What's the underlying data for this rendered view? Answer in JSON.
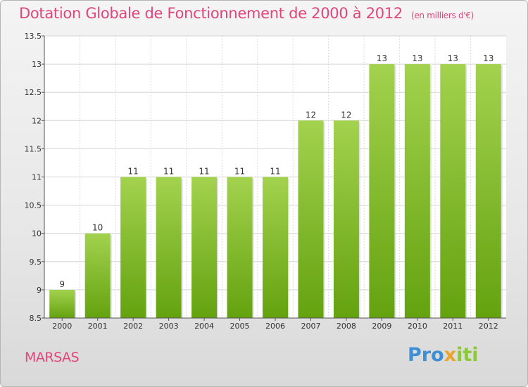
{
  "header": {
    "title": "Dotation Globale de Fonctionnement de 2000 à 2012",
    "subtitle": "(en milliers d'€)"
  },
  "footer": {
    "place": "MARSAS",
    "logo_letters": [
      {
        "char": "P",
        "color": "#3f8fd4"
      },
      {
        "char": "r",
        "color": "#3f8fd4"
      },
      {
        "char": "o",
        "color": "#3f8fd4"
      },
      {
        "char": "x",
        "color": "#e8a42c"
      },
      {
        "char": "i",
        "color": "#8bc83a"
      },
      {
        "char": "t",
        "color": "#8bc83a"
      },
      {
        "char": "i",
        "color": "#8bc83a"
      }
    ]
  },
  "chart_data": {
    "type": "bar",
    "categories": [
      "2000",
      "2001",
      "2002",
      "2003",
      "2004",
      "2005",
      "2006",
      "2007",
      "2008",
      "2009",
      "2010",
      "2011",
      "2012"
    ],
    "values": [
      9,
      10,
      11,
      11,
      11,
      11,
      11,
      12,
      12,
      13,
      13,
      13,
      13
    ],
    "data_labels": [
      "9",
      "10",
      "11",
      "11",
      "11",
      "11",
      "11",
      "12",
      "12",
      "13",
      "13",
      "13",
      "13"
    ],
    "ylim": [
      8.5,
      13.5
    ],
    "yticks": [
      8.5,
      9,
      9.5,
      10,
      10.5,
      11,
      11.5,
      12,
      12.5,
      13,
      13.5
    ],
    "ytick_labels": [
      "8.5",
      "9",
      "9.5",
      "10",
      "10.5",
      "11",
      "11.5",
      "12",
      "12.5",
      "13",
      "13.5"
    ],
    "grid": true,
    "bar_color_top": "#a3d24e",
    "bar_color_bottom": "#64a20f"
  }
}
